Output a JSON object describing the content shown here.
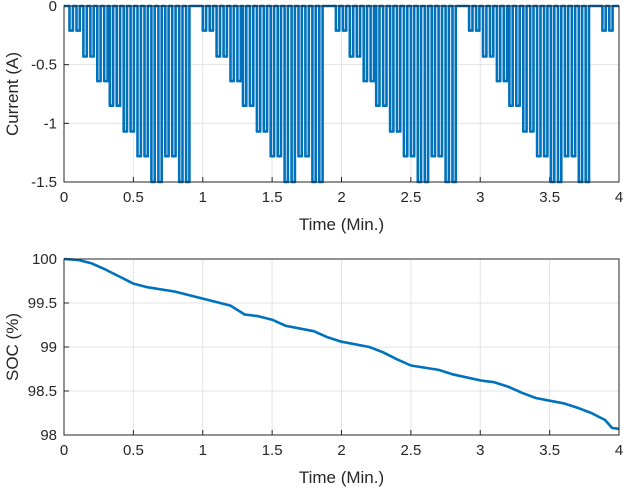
{
  "chart_data": [
    {
      "type": "line",
      "xlabel": "Time (Min.)",
      "ylabel": "Current (A)",
      "xlim": [
        0,
        4
      ],
      "ylim": [
        -1.5,
        0
      ],
      "xticks": [
        "0",
        "0.5",
        "1",
        "1.5",
        "2",
        "2.5",
        "3",
        "3.5",
        "4"
      ],
      "yticks": [
        "0",
        "-0.5",
        "-1",
        "-1.5"
      ],
      "grid": true,
      "color": "#0072BD",
      "pattern": {
        "cycle_period_min": 0.96,
        "pulse_width_min": 0.024,
        "pulses": [
          {
            "t": 0.04,
            "i": -0.21
          },
          {
            "t": 0.09,
            "i": -0.21
          },
          {
            "t": 0.14,
            "i": -0.43
          },
          {
            "t": 0.19,
            "i": -0.43
          },
          {
            "t": 0.24,
            "i": -0.64
          },
          {
            "t": 0.29,
            "i": -0.64
          },
          {
            "t": 0.33,
            "i": -0.85
          },
          {
            "t": 0.38,
            "i": -0.85
          },
          {
            "t": 0.43,
            "i": -1.07
          },
          {
            "t": 0.48,
            "i": -1.07
          },
          {
            "t": 0.53,
            "i": -1.28
          },
          {
            "t": 0.58,
            "i": -1.28
          },
          {
            "t": 0.63,
            "i": -1.5
          },
          {
            "t": 0.68,
            "i": -1.5
          },
          {
            "t": 0.73,
            "i": -1.28
          },
          {
            "t": 0.78,
            "i": -1.28
          },
          {
            "t": 0.83,
            "i": -1.5
          },
          {
            "t": 0.88,
            "i": -1.5
          }
        ]
      }
    },
    {
      "type": "line",
      "xlabel": "Time (Min.)",
      "ylabel": "SOC (%)",
      "xlim": [
        0,
        4
      ],
      "ylim": [
        98,
        100
      ],
      "xticks": [
        "0",
        "0.5",
        "1",
        "1.5",
        "2",
        "2.5",
        "3",
        "3.5",
        "4"
      ],
      "yticks": [
        "100",
        "99.5",
        "99",
        "98.5",
        "98"
      ],
      "grid": true,
      "color": "#0072BD",
      "x": [
        0,
        0.1,
        0.2,
        0.3,
        0.4,
        0.5,
        0.6,
        0.8,
        1.0,
        1.2,
        1.3,
        1.4,
        1.5,
        1.6,
        1.8,
        1.9,
        2.0,
        2.2,
        2.3,
        2.4,
        2.5,
        2.7,
        2.8,
        3.0,
        3.1,
        3.2,
        3.3,
        3.4,
        3.5,
        3.6,
        3.7,
        3.8,
        3.9,
        3.95,
        4.0
      ],
      "y": [
        100,
        99.99,
        99.95,
        99.88,
        99.8,
        99.72,
        99.68,
        99.63,
        99.55,
        99.47,
        99.37,
        99.35,
        99.31,
        99.24,
        99.18,
        99.11,
        99.06,
        99.0,
        98.94,
        98.86,
        98.79,
        98.74,
        98.69,
        98.62,
        98.6,
        98.55,
        98.48,
        98.42,
        98.39,
        98.36,
        98.31,
        98.25,
        98.17,
        98.08,
        98.07
      ]
    }
  ]
}
